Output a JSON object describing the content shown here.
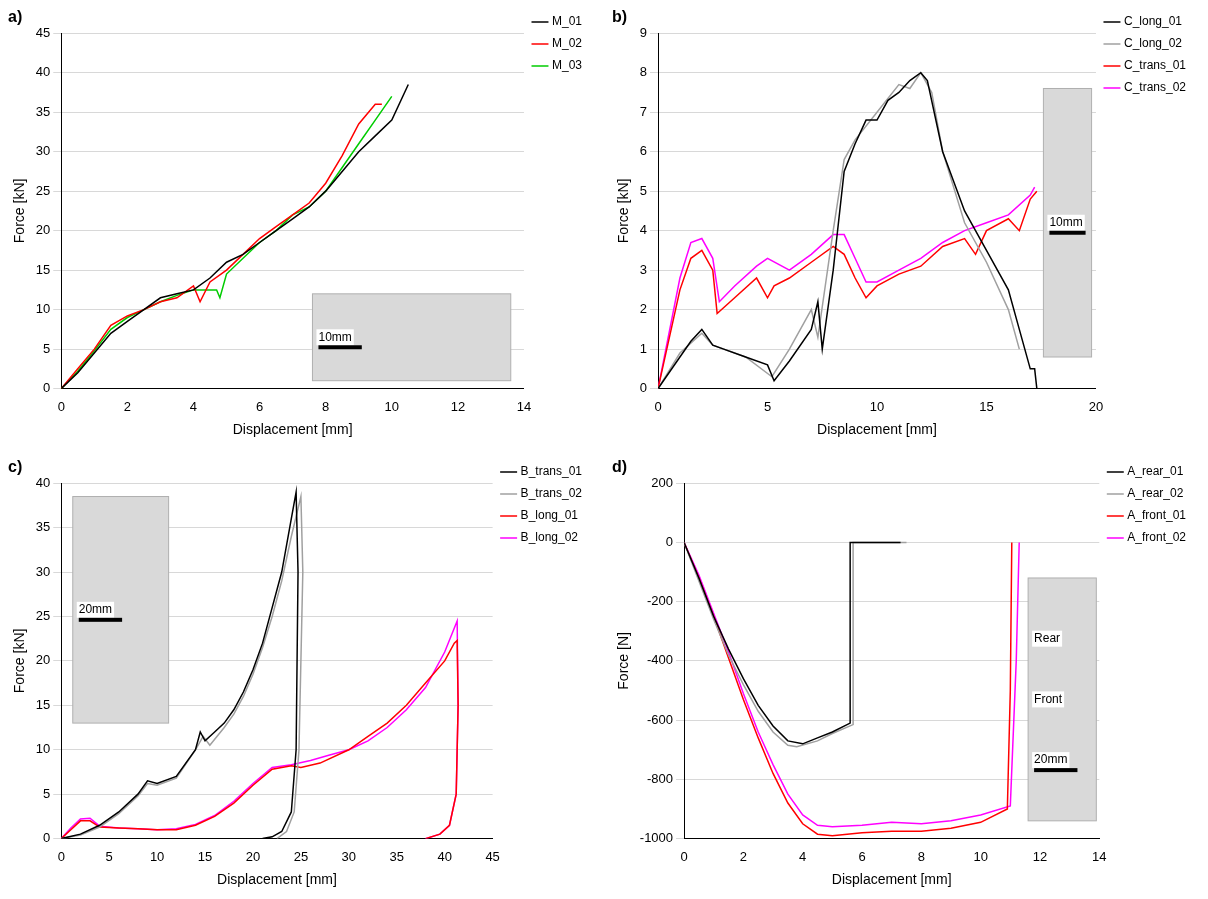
{
  "chart_data": [
    {
      "type": "line",
      "title": "a)",
      "x_label": "Displacement [mm]",
      "y_label": "Force [kN]",
      "xlim": [
        0,
        14
      ],
      "xticks": [
        0,
        2,
        4,
        6,
        8,
        10,
        12,
        14
      ],
      "ylim": [
        0,
        45
      ],
      "yticks": [
        0,
        5,
        10,
        15,
        20,
        25,
        30,
        35,
        40,
        45
      ],
      "grid": true,
      "legend": "right",
      "annotations": [
        "10mm"
      ],
      "series": [
        {
          "name": "M_01",
          "color": "#000000",
          "x": [
            0,
            0.5,
            1,
            1.5,
            2,
            2.5,
            3,
            3.5,
            4,
            4.5,
            5,
            5.5,
            6,
            6.5,
            7,
            7.5,
            8,
            8.5,
            9,
            9.5,
            10,
            10.5
          ],
          "values": [
            0,
            2,
            4.5,
            7,
            8.5,
            10,
            11.5,
            12,
            12.5,
            14,
            16,
            17,
            18.5,
            20,
            21.5,
            23,
            25,
            27.5,
            30,
            32,
            34,
            38.5
          ]
        },
        {
          "name": "M_02",
          "color": "#ff0000",
          "x": [
            0,
            0.5,
            1,
            1.5,
            2,
            2.5,
            3,
            3.5,
            4,
            4.2,
            4.5,
            5,
            5.5,
            6,
            6.5,
            7,
            7.5,
            8,
            8.5,
            9,
            9.5,
            9.7
          ],
          "values": [
            0,
            2.5,
            5,
            8,
            9.2,
            10,
            11,
            11.5,
            13,
            11,
            13.5,
            15,
            17,
            19,
            20.5,
            22,
            23.5,
            26,
            29.5,
            33.5,
            36,
            36
          ]
        },
        {
          "name": "M_03",
          "color": "#00cc00",
          "x": [
            0,
            0.5,
            1,
            1.5,
            2,
            2.5,
            3,
            3.5,
            4,
            4.7,
            4.8,
            5,
            5.5,
            6,
            6.5,
            7,
            7.5,
            8,
            8.5,
            9,
            9.5,
            10
          ],
          "values": [
            0,
            2.2,
            4.8,
            7.5,
            9,
            10,
            11,
            11.8,
            12.5,
            12.5,
            11.5,
            14.5,
            16.5,
            18.5,
            20,
            22,
            23,
            25,
            28,
            31,
            34,
            37
          ]
        }
      ]
    },
    {
      "type": "line",
      "title": "b)",
      "x_label": "Displacement [mm]",
      "y_label": "Force [kN]",
      "xlim": [
        0,
        20
      ],
      "xticks": [
        0,
        5,
        10,
        15,
        20
      ],
      "ylim": [
        0,
        9
      ],
      "yticks": [
        0,
        1,
        2,
        3,
        4,
        5,
        6,
        7,
        8,
        9
      ],
      "grid": true,
      "legend": "right",
      "annotations": [
        "10mm"
      ],
      "series": [
        {
          "name": "C_long_01",
          "color": "#000000",
          "x": [
            0,
            1,
            1.5,
            2,
            2.5,
            3,
            4,
            5,
            5.3,
            6,
            7,
            7.3,
            7.5,
            8,
            8.5,
            9,
            9.5,
            10,
            10.5,
            11,
            11.5,
            12,
            12.3,
            13,
            14,
            15,
            16,
            16.5,
            17,
            17.2,
            17.3
          ],
          "values": [
            0,
            0.8,
            1.2,
            1.5,
            1.1,
            1,
            0.8,
            0.6,
            0.2,
            0.7,
            1.5,
            2.2,
            1,
            3,
            5.5,
            6.2,
            6.8,
            6.8,
            7.3,
            7.5,
            7.8,
            8,
            7.8,
            6,
            4.5,
            3.5,
            2.5,
            1.5,
            0.5,
            0.5,
            0
          ]
        },
        {
          "name": "C_long_02",
          "color": "#a0a0a0",
          "x": [
            0,
            1,
            2,
            2.5,
            4,
            5.2,
            6,
            7,
            7.3,
            8,
            8.5,
            9,
            10,
            11,
            11.5,
            12,
            12.5,
            13,
            14,
            15,
            16,
            16.5
          ],
          "values": [
            0,
            0.9,
            1.4,
            1.1,
            0.8,
            0.3,
            1,
            2,
            1.3,
            4,
            5.8,
            6.3,
            7,
            7.7,
            7.6,
            8,
            7.5,
            6,
            4.2,
            3.2,
            2,
            1
          ]
        },
        {
          "name": "C_trans_01",
          "color": "#ff0000",
          "x": [
            0,
            1,
            1.5,
            2,
            2.5,
            2.7,
            3.5,
            4.5,
            5,
            5.3,
            6,
            7,
            8,
            8.5,
            9,
            9.5,
            10,
            11,
            12,
            13,
            14,
            14.5,
            15,
            16,
            16.5,
            17,
            17.3
          ],
          "values": [
            0,
            2.5,
            3.3,
            3.5,
            3,
            1.9,
            2.3,
            2.8,
            2.3,
            2.6,
            2.8,
            3.2,
            3.6,
            3.4,
            2.8,
            2.3,
            2.6,
            2.9,
            3.1,
            3.6,
            3.8,
            3.4,
            4,
            4.3,
            4,
            4.8,
            5
          ]
        },
        {
          "name": "C_trans_02",
          "color": "#ff00ff",
          "x": [
            0,
            1,
            1.5,
            2,
            2.5,
            2.8,
            3.5,
            4.5,
            5,
            6,
            7,
            8,
            8.5,
            9,
            9.5,
            10,
            11,
            12,
            13,
            14,
            15,
            16,
            17,
            17.2
          ],
          "values": [
            0,
            2.8,
            3.7,
            3.8,
            3.3,
            2.2,
            2.6,
            3.1,
            3.3,
            3,
            3.4,
            3.9,
            3.9,
            3.3,
            2.7,
            2.7,
            3,
            3.3,
            3.7,
            4,
            4.2,
            4.4,
            4.9,
            5.1
          ]
        }
      ]
    },
    {
      "type": "line",
      "title": "c)",
      "x_label": "Displacement [mm]",
      "y_label": "Force [kN]",
      "xlim": [
        0,
        45
      ],
      "xticks": [
        0,
        5,
        10,
        15,
        20,
        25,
        30,
        35,
        40,
        45
      ],
      "ylim": [
        0,
        40
      ],
      "yticks": [
        0,
        5,
        10,
        15,
        20,
        25,
        30,
        35,
        40
      ],
      "grid": true,
      "legend": "right",
      "annotations": [
        "20mm"
      ],
      "series": [
        {
          "name": "B_trans_01",
          "color": "#000000",
          "x": [
            0,
            2,
            4,
            6,
            8,
            9,
            10,
            12,
            14,
            14.5,
            15,
            16,
            17,
            18,
            19,
            20,
            21,
            22,
            23,
            24,
            24.5,
            24.7,
            24.5,
            24,
            23,
            22,
            21
          ],
          "values": [
            0,
            0.5,
            1.5,
            3,
            5,
            6.5,
            6.2,
            7,
            10,
            12,
            11,
            12,
            13,
            14.5,
            16.5,
            19,
            22,
            26,
            30,
            36,
            39,
            30,
            10,
            3,
            0.8,
            0.2,
            0
          ]
        },
        {
          "name": "B_trans_02",
          "color": "#a0a0a0",
          "x": [
            0,
            2,
            4,
            6,
            8,
            9,
            10,
            12,
            14,
            14.8,
            15.5,
            17,
            18,
            19,
            20,
            21,
            22,
            23,
            24,
            25,
            25.2,
            24.8,
            24.3,
            23.5,
            22.5
          ],
          "values": [
            0,
            0.4,
            1.3,
            2.8,
            4.8,
            6.2,
            6,
            6.8,
            10,
            11.5,
            10.5,
            12.5,
            14,
            16,
            18.5,
            21.5,
            25,
            29,
            34,
            38.5,
            30,
            10,
            3,
            0.8,
            0
          ]
        },
        {
          "name": "B_long_01",
          "color": "#ff0000",
          "x": [
            0,
            1,
            2,
            3,
            4,
            6,
            8,
            10,
            12,
            14,
            16,
            18,
            20,
            22,
            24,
            25,
            27,
            30,
            32,
            34,
            36,
            38,
            40,
            41,
            41.3,
            41.4,
            41.2,
            40.5,
            39.5,
            38
          ],
          "values": [
            0,
            1,
            2,
            2,
            1.3,
            1.2,
            1.1,
            1,
            1,
            1.5,
            2.5,
            4,
            6,
            7.8,
            8.2,
            8,
            8.5,
            10,
            11.5,
            13,
            15,
            17.5,
            20,
            22,
            22.3,
            15,
            5,
            1.5,
            0.5,
            0
          ]
        },
        {
          "name": "B_long_02",
          "color": "#ff00ff",
          "x": [
            0,
            1,
            2,
            3,
            4,
            6,
            8,
            10,
            12,
            14,
            16,
            18,
            20,
            22,
            24,
            26,
            28,
            30,
            32,
            34,
            36,
            38,
            40,
            41.3,
            41.4,
            41.2,
            40.5,
            39.5,
            38
          ],
          "values": [
            0,
            1.2,
            2.2,
            2.3,
            1.4,
            1.2,
            1.1,
            1,
            1.1,
            1.6,
            2.6,
            4.2,
            6.2,
            8,
            8.3,
            8.8,
            9.4,
            10,
            11,
            12.5,
            14.5,
            17,
            21,
            24.5,
            15,
            5,
            1.5,
            0.5,
            0
          ]
        }
      ]
    },
    {
      "type": "line",
      "title": "d)",
      "x_label": "Displacement [mm]",
      "y_label": "Force [N]",
      "xlim": [
        0,
        14
      ],
      "xticks": [
        0,
        2,
        4,
        6,
        8,
        10,
        12,
        14
      ],
      "ylim": [
        -1000,
        200
      ],
      "yticks": [
        -1000,
        -800,
        -600,
        -400,
        -200,
        0,
        200
      ],
      "grid": true,
      "legend": "right",
      "annotations": [
        "Rear",
        "Front",
        "20mm"
      ],
      "series": [
        {
          "name": "A_rear_01",
          "color": "#000000",
          "x": [
            0,
            0.5,
            1,
            1.5,
            2,
            2.5,
            3,
            3.5,
            4,
            4.5,
            5,
            5.6,
            5.6,
            7.3
          ],
          "values": [
            0,
            -120,
            -250,
            -360,
            -460,
            -550,
            -620,
            -670,
            -680,
            -660,
            -640,
            -610,
            0,
            0
          ]
        },
        {
          "name": "A_rear_02",
          "color": "#a0a0a0",
          "x": [
            0,
            0.5,
            1,
            1.5,
            2,
            2.5,
            3,
            3.5,
            3.8,
            4.5,
            5,
            5.7,
            5.7,
            7.5
          ],
          "values": [
            0,
            -130,
            -260,
            -380,
            -480,
            -570,
            -640,
            -685,
            -690,
            -670,
            -645,
            -615,
            0,
            0
          ]
        },
        {
          "name": "A_front_01",
          "color": "#ff0000",
          "x": [
            0,
            0.5,
            1,
            1.5,
            2,
            2.5,
            3,
            3.5,
            4,
            4.5,
            5,
            6,
            7,
            8,
            9,
            10,
            10.9,
            11,
            11.05
          ],
          "values": [
            0,
            -120,
            -250,
            -390,
            -530,
            -660,
            -780,
            -880,
            -950,
            -985,
            -990,
            -980,
            -975,
            -975,
            -965,
            -945,
            -900,
            -500,
            0
          ]
        },
        {
          "name": "A_front_02",
          "color": "#ff00ff",
          "x": [
            0,
            0.5,
            1,
            1.5,
            2,
            2.5,
            3,
            3.5,
            4,
            4.5,
            5,
            6,
            7,
            8,
            9,
            10,
            11,
            11.2,
            11.3
          ],
          "values": [
            0,
            -110,
            -240,
            -370,
            -510,
            -640,
            -750,
            -850,
            -920,
            -955,
            -960,
            -955,
            -945,
            -950,
            -940,
            -920,
            -890,
            -400,
            0
          ]
        }
      ]
    }
  ]
}
